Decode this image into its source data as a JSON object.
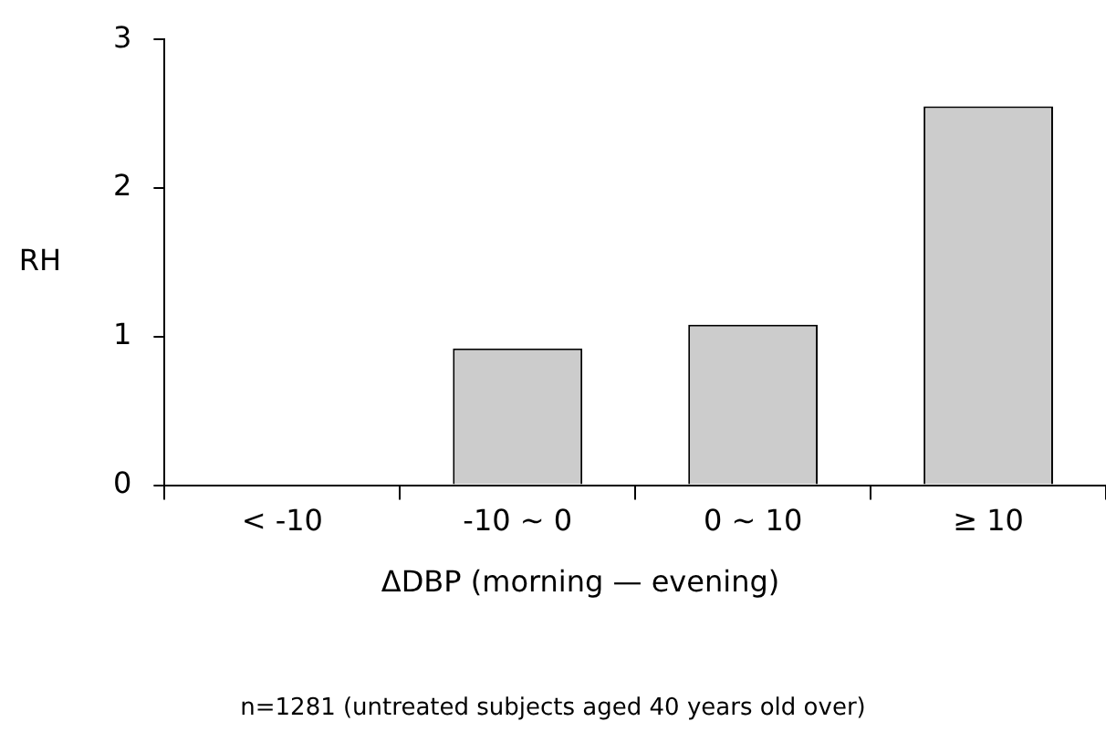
{
  "chart_data": {
    "type": "bar",
    "categories": [
      "< -10",
      "-10 ~ 0",
      "0 ~ 10",
      "≥ 10"
    ],
    "values": [
      null,
      0.92,
      1.08,
      2.55
    ],
    "color": "#cccccc",
    "ylabel": "RH",
    "xlabel": "ΔDBP (morning — evening)",
    "ylim": [
      0,
      3
    ],
    "yticks": [
      0,
      1,
      2,
      3
    ],
    "grid": false,
    "legend": false,
    "annotations": [
      "n=1281 (untreated subjects aged 40 years old over)"
    ]
  }
}
